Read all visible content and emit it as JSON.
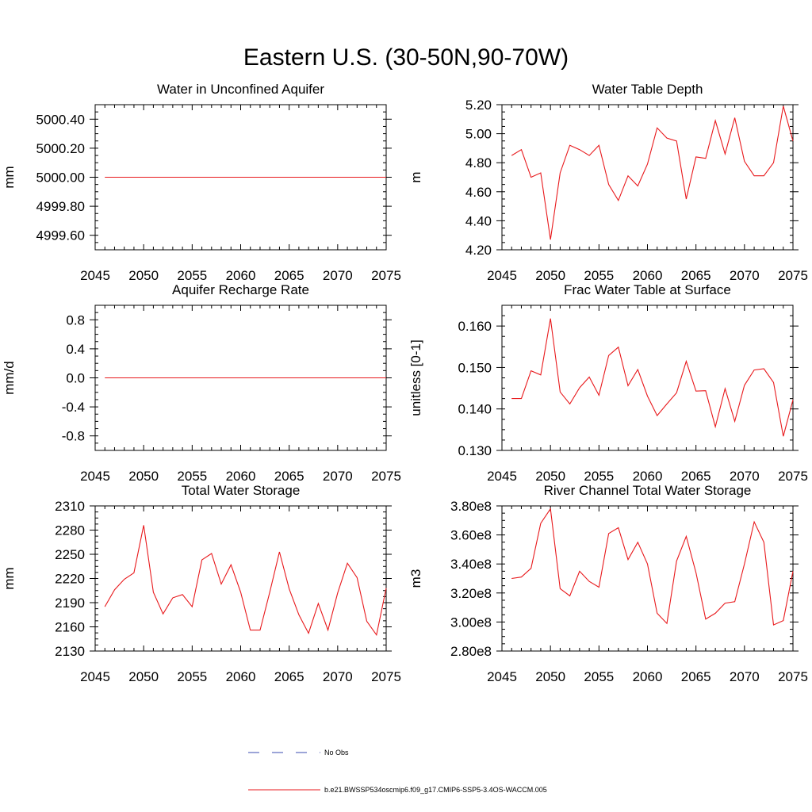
{
  "title": "Eastern U.S. (30-50N,90-70W)",
  "colors": {
    "model_line": "#e8191c",
    "obs_line": "#3a4bb0",
    "axis": "#000000"
  },
  "legend": {
    "obs_label": "No Obs",
    "model_label": "b.e21.BWSSP534oscmip6.f09_g17.CMIP6-SSP5-3.4OS-WACCM.005"
  },
  "chart_data": [
    {
      "type": "line",
      "title": "Water in Unconfined Aquifer",
      "ylabel": "mm",
      "xlim": [
        2045,
        2075
      ],
      "ylim": [
        4999.5,
        5000.5
      ],
      "xticks": [
        2045,
        2050,
        2055,
        2060,
        2065,
        2070,
        2075
      ],
      "yticks": [
        4999.6,
        4999.8,
        5000.0,
        5000.2,
        5000.4
      ],
      "ytick_labels": [
        "4999.60",
        "4999.80",
        "5000.00",
        "5000.20",
        "5000.40"
      ],
      "x": [
        2046,
        2047,
        2048,
        2049,
        2050,
        2051,
        2052,
        2053,
        2054,
        2055,
        2056,
        2057,
        2058,
        2059,
        2060,
        2061,
        2062,
        2063,
        2064,
        2065,
        2066,
        2067,
        2068,
        2069,
        2070,
        2071,
        2072,
        2073,
        2074,
        2075
      ],
      "values": [
        5000,
        5000,
        5000,
        5000,
        5000,
        5000,
        5000,
        5000,
        5000,
        5000,
        5000,
        5000,
        5000,
        5000,
        5000,
        5000,
        5000,
        5000,
        5000,
        5000,
        5000,
        5000,
        5000,
        5000,
        5000,
        5000,
        5000,
        5000,
        5000,
        5000
      ]
    },
    {
      "type": "line",
      "title": "Water Table Depth",
      "ylabel": "m",
      "xlim": [
        2045,
        2075
      ],
      "ylim": [
        4.2,
        5.2
      ],
      "xticks": [
        2045,
        2050,
        2055,
        2060,
        2065,
        2070,
        2075
      ],
      "yticks": [
        4.2,
        4.4,
        4.6,
        4.8,
        5.0,
        5.2
      ],
      "ytick_labels": [
        "4.20",
        "4.40",
        "4.60",
        "4.80",
        "5.00",
        "5.20"
      ],
      "x": [
        2046,
        2047,
        2048,
        2049,
        2050,
        2051,
        2052,
        2053,
        2054,
        2055,
        2056,
        2057,
        2058,
        2059,
        2060,
        2061,
        2062,
        2063,
        2064,
        2065,
        2066,
        2067,
        2068,
        2069,
        2070,
        2071,
        2072,
        2073,
        2074,
        2075
      ],
      "values": [
        4.85,
        4.89,
        4.7,
        4.73,
        4.27,
        4.73,
        4.92,
        4.89,
        4.85,
        4.92,
        4.65,
        4.54,
        4.71,
        4.64,
        4.79,
        5.04,
        4.97,
        4.95,
        4.55,
        4.84,
        4.83,
        5.09,
        4.86,
        5.11,
        4.81,
        4.71,
        4.71,
        4.8,
        5.19,
        4.95
      ]
    },
    {
      "type": "line",
      "title": "Aquifer Recharge Rate",
      "ylabel": "mm/d",
      "xlim": [
        2045,
        2075
      ],
      "ylim": [
        -1.0,
        1.0
      ],
      "xticks": [
        2045,
        2050,
        2055,
        2060,
        2065,
        2070,
        2075
      ],
      "yticks": [
        -0.8,
        -0.4,
        0.0,
        0.4,
        0.8
      ],
      "ytick_labels": [
        "-0.8",
        "-0.4",
        "0.0",
        "0.4",
        "0.8"
      ],
      "x": [
        2046,
        2047,
        2048,
        2049,
        2050,
        2051,
        2052,
        2053,
        2054,
        2055,
        2056,
        2057,
        2058,
        2059,
        2060,
        2061,
        2062,
        2063,
        2064,
        2065,
        2066,
        2067,
        2068,
        2069,
        2070,
        2071,
        2072,
        2073,
        2074,
        2075
      ],
      "values": [
        0,
        0,
        0,
        0,
        0,
        0,
        0,
        0,
        0,
        0,
        0,
        0,
        0,
        0,
        0,
        0,
        0,
        0,
        0,
        0,
        0,
        0,
        0,
        0,
        0,
        0,
        0,
        0,
        0,
        0
      ]
    },
    {
      "type": "line",
      "title": "Frac Water Table at Surface",
      "ylabel": "unitless [0-1]",
      "xlim": [
        2045,
        2075
      ],
      "ylim": [
        0.13,
        0.165
      ],
      "xticks": [
        2045,
        2050,
        2055,
        2060,
        2065,
        2070,
        2075
      ],
      "yticks": [
        0.13,
        0.14,
        0.15,
        0.16
      ],
      "ytick_labels": [
        "0.130",
        "0.140",
        "0.150",
        "0.160"
      ],
      "x": [
        2046,
        2047,
        2048,
        2049,
        2050,
        2051,
        2052,
        2053,
        2054,
        2055,
        2056,
        2057,
        2058,
        2059,
        2060,
        2061,
        2062,
        2063,
        2064,
        2065,
        2066,
        2067,
        2068,
        2069,
        2070,
        2071,
        2072,
        2073,
        2074,
        2075
      ],
      "values": [
        0.1425,
        0.1425,
        0.1492,
        0.1482,
        0.1618,
        0.1441,
        0.1412,
        0.1451,
        0.1477,
        0.1433,
        0.1529,
        0.1549,
        0.1456,
        0.1495,
        0.1431,
        0.1384,
        0.1412,
        0.1439,
        0.1515,
        0.1443,
        0.1444,
        0.1357,
        0.1449,
        0.137,
        0.1457,
        0.1494,
        0.1497,
        0.1464,
        0.1334,
        0.1422
      ]
    },
    {
      "type": "line",
      "title": "Total Water Storage",
      "ylabel": "mm",
      "xlim": [
        2045,
        2075
      ],
      "ylim": [
        2130,
        2310
      ],
      "xticks": [
        2045,
        2050,
        2055,
        2060,
        2065,
        2070,
        2075
      ],
      "yticks": [
        2130,
        2160,
        2190,
        2220,
        2250,
        2280,
        2310
      ],
      "ytick_labels": [
        "2130",
        "2160",
        "2190",
        "2220",
        "2250",
        "2280",
        "2310"
      ],
      "x": [
        2046,
        2047,
        2048,
        2049,
        2050,
        2051,
        2052,
        2053,
        2054,
        2055,
        2056,
        2057,
        2058,
        2059,
        2060,
        2061,
        2062,
        2063,
        2064,
        2065,
        2066,
        2067,
        2068,
        2069,
        2070,
        2071,
        2072,
        2073,
        2074,
        2075
      ],
      "values": [
        2185,
        2206,
        2219,
        2227,
        2286,
        2203,
        2176,
        2196,
        2200,
        2185,
        2243,
        2251,
        2213,
        2237,
        2203,
        2156,
        2156,
        2203,
        2253,
        2207,
        2175,
        2152,
        2189,
        2156,
        2202,
        2239,
        2221,
        2167,
        2150,
        2208
      ]
    },
    {
      "type": "line",
      "title": "River Channel Total Water Storage",
      "ylabel": "m3",
      "xlim": [
        2045,
        2075
      ],
      "ylim": [
        280000000.0,
        380000000.0
      ],
      "xticks": [
        2045,
        2050,
        2055,
        2060,
        2065,
        2070,
        2075
      ],
      "yticks": [
        280000000.0,
        300000000.0,
        320000000.0,
        340000000.0,
        360000000.0,
        380000000.0
      ],
      "ytick_labels": [
        "2.80e8",
        "3.00e8",
        "3.20e8",
        "3.40e8",
        "3.60e8",
        "3.80e8"
      ],
      "x": [
        2046,
        2047,
        2048,
        2049,
        2050,
        2051,
        2052,
        2053,
        2054,
        2055,
        2056,
        2057,
        2058,
        2059,
        2060,
        2061,
        2062,
        2063,
        2064,
        2065,
        2066,
        2067,
        2068,
        2069,
        2070,
        2071,
        2072,
        2073,
        2074,
        2075
      ],
      "values": [
        330000000.0,
        331000000.0,
        337000000.0,
        368000000.0,
        378000000.0,
        323000000.0,
        318000000.0,
        335000000.0,
        328000000.0,
        324000000.0,
        361000000.0,
        365000000.0,
        343000000.0,
        355000000.0,
        340000000.0,
        306000000.0,
        299000000.0,
        342000000.0,
        359000000.0,
        334000000.0,
        302000000.0,
        306000000.0,
        313000000.0,
        314000000.0,
        340000000.0,
        369000000.0,
        355000000.0,
        298000000.0,
        301000000.0,
        335000000.0
      ]
    }
  ]
}
